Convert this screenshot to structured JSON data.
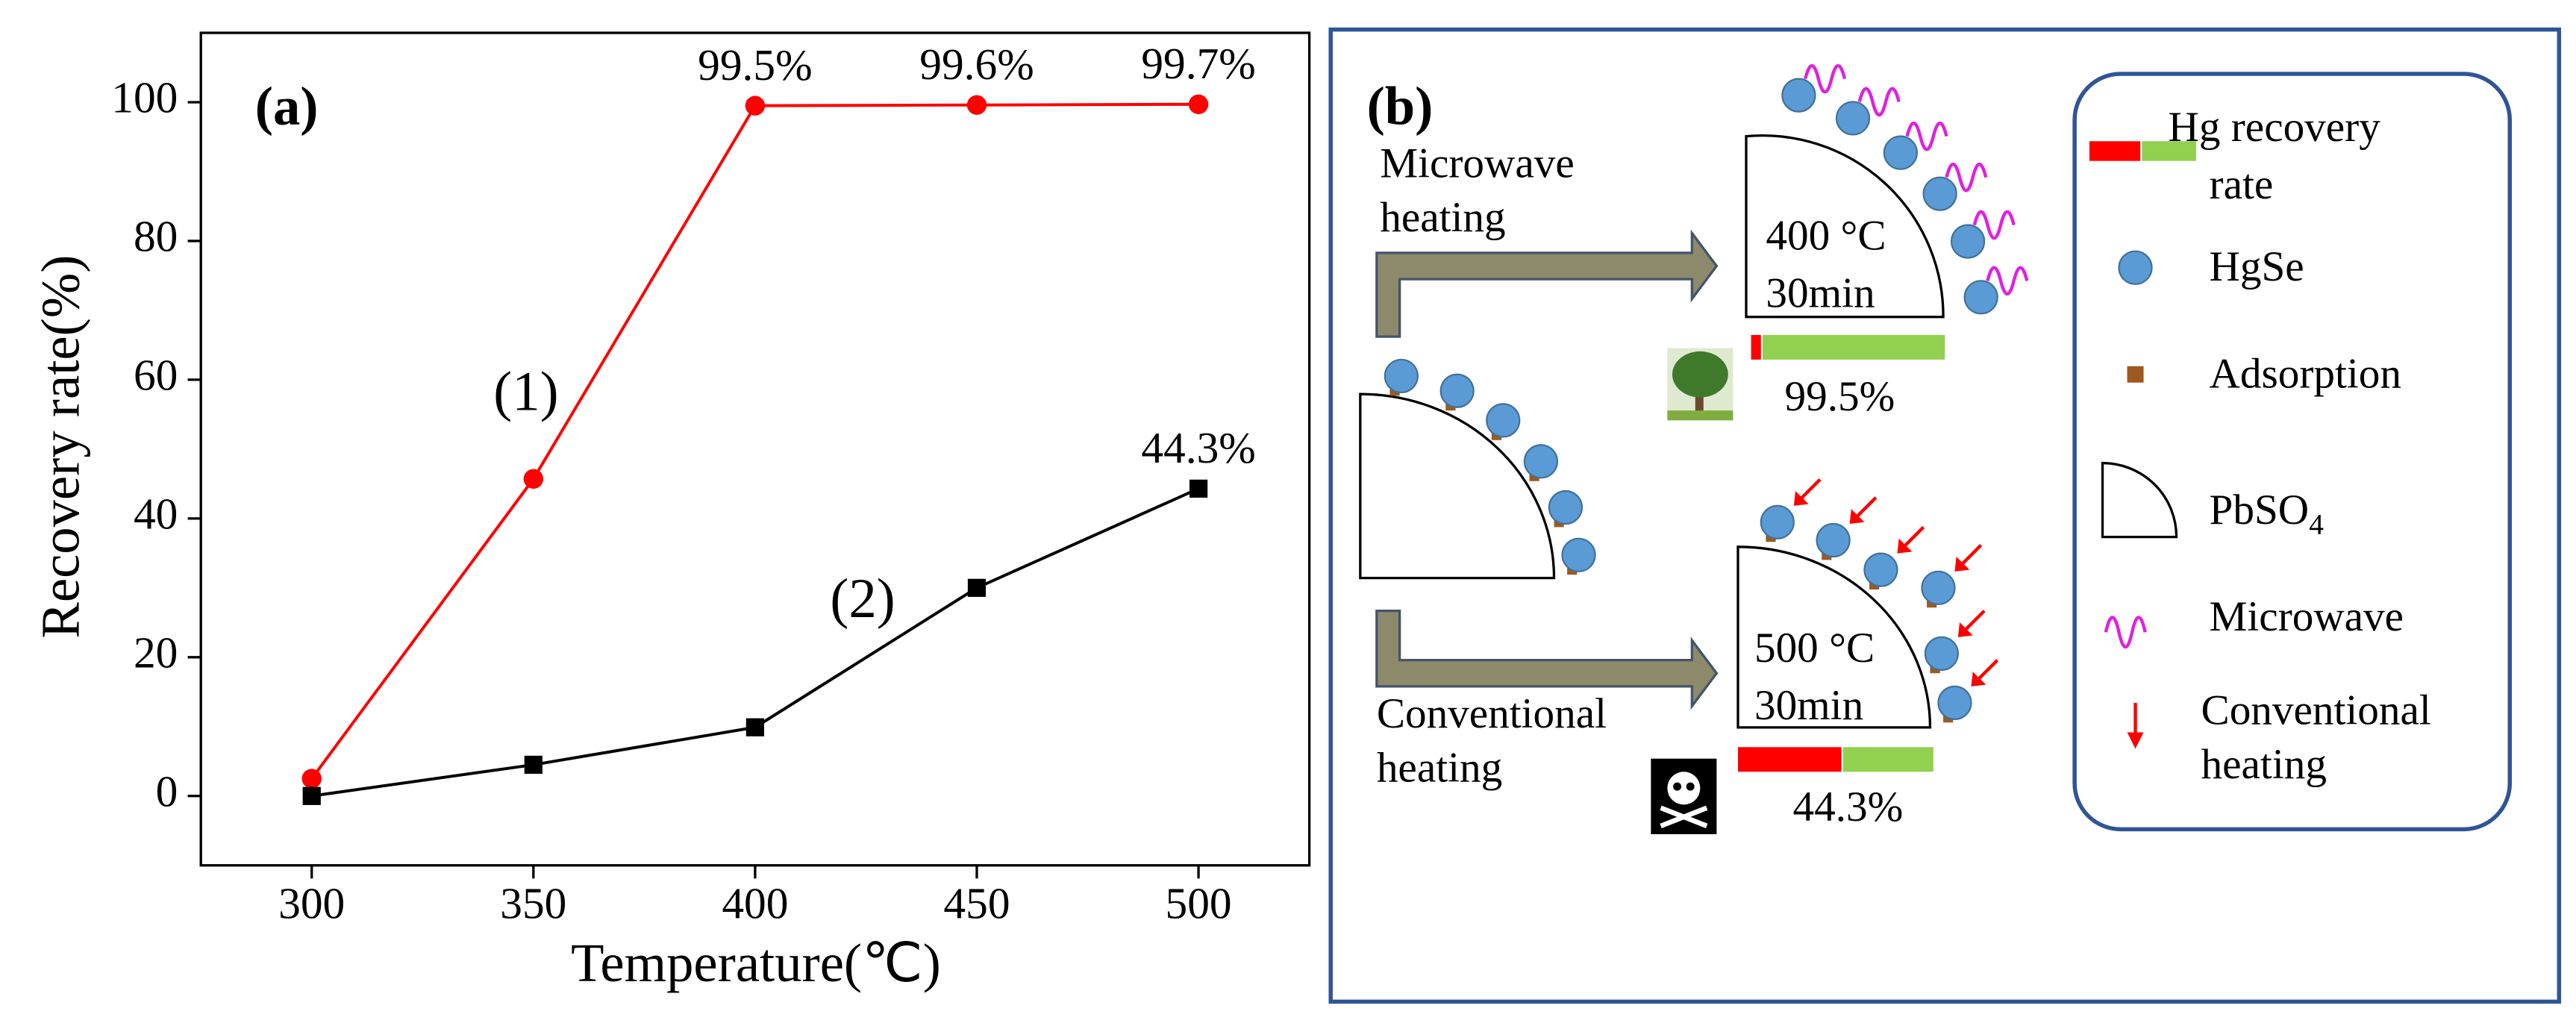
{
  "chart_data": {
    "type": "line",
    "panel_label": "(a)",
    "x_label": "Temperature(℃)",
    "y_label": "Recovery rate(%)",
    "x": [
      300,
      350,
      400,
      450,
      500
    ],
    "series": [
      {
        "name": "(1)",
        "color": "#ff0000",
        "marker": "circle",
        "values": [
          2.5,
          45.7,
          99.5,
          99.6,
          99.7
        ],
        "value_labels": [
          null,
          null,
          "99.5%",
          "99.6%",
          "99.7%"
        ]
      },
      {
        "name": "(2)",
        "color": "#000000",
        "marker": "square",
        "values": [
          0,
          4.5,
          9.9,
          30,
          44.3
        ],
        "value_labels": [
          null,
          null,
          null,
          null,
          "44.3%"
        ]
      }
    ],
    "xlim": [
      275,
      525
    ],
    "xticks": [
      300,
      350,
      400,
      450,
      500
    ],
    "ylim": [
      -10,
      110
    ],
    "yticks": [
      0,
      20,
      40,
      60,
      80,
      100
    ]
  },
  "diagram": {
    "panel_label": "(b)",
    "routes": [
      {
        "label_lines": [
          "Microwave",
          "heating"
        ],
        "temperature": "400 °C",
        "time": "30min",
        "rate": "99.5%"
      },
      {
        "label_lines": [
          "Conventional",
          "heating"
        ],
        "temperature": "500 °C",
        "time": "30min",
        "rate": "44.3%"
      }
    ],
    "legend": {
      "recovery": [
        "Hg recovery",
        "rate"
      ],
      "hgse": "HgSe",
      "adsorption": "Adsorption",
      "pbso": "PbSO",
      "pbso_sub": "4",
      "microwave": "Microwave",
      "conventional": [
        "Conventional",
        "heating"
      ]
    }
  }
}
